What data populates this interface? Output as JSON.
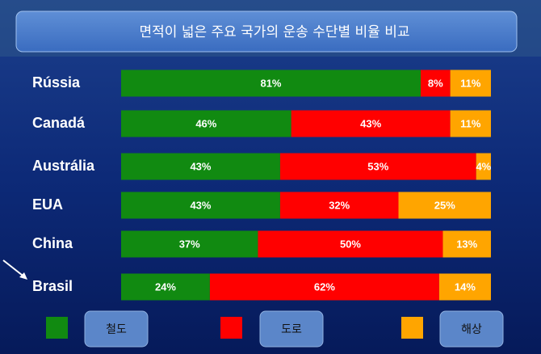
{
  "chart_data": {
    "type": "stacked-bar-horizontal",
    "title": "면적이 넓은 주요 국가의 운송 수단별 비율 비교",
    "categories": [
      "Rússia",
      "Canadá",
      "Austrália",
      "EUA",
      "China",
      "Brasil"
    ],
    "series": [
      {
        "name": "철도",
        "color": "#118a11",
        "values": [
          81,
          46,
          43,
          43,
          37,
          24
        ],
        "value_labels": [
          "81%",
          "46%",
          "43%",
          "43%",
          "37%",
          "24%"
        ]
      },
      {
        "name": "도로",
        "color": "#ff0000",
        "values": [
          8,
          43,
          53,
          32,
          50,
          62
        ],
        "value_labels": [
          "8%",
          "43%",
          "53%",
          "32%",
          "50%",
          "62%"
        ]
      },
      {
        "name": "해상",
        "color": "#ffa500",
        "values": [
          11,
          11,
          4,
          25,
          13,
          14
        ],
        "value_labels": [
          "11%",
          "11%",
          "4%",
          "25%",
          "13%",
          "14%"
        ]
      }
    ]
  }
}
